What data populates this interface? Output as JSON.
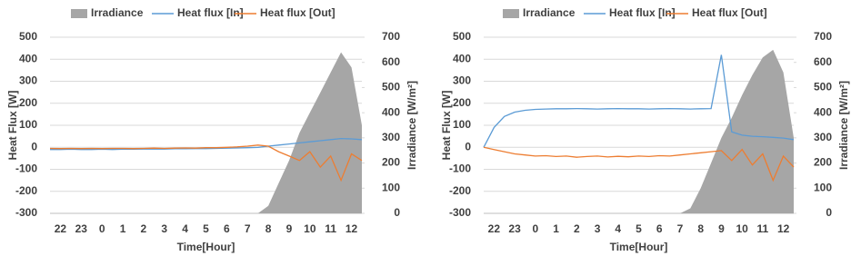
{
  "chart_data": [
    {
      "type": "line",
      "x_label": "Time[Hour]",
      "y_label": "Heat Flux [W]",
      "y2_label": "Irradiance [W/m²]",
      "categories": [
        null,
        "22",
        null,
        "23",
        null,
        "0",
        null,
        "1",
        null,
        "2",
        null,
        "3",
        null,
        "4",
        null,
        "5",
        null,
        "6",
        null,
        "7",
        null,
        "8",
        null,
        "9",
        null,
        "10",
        null,
        "11",
        null,
        "12",
        null
      ],
      "ylim": [
        -300,
        500
      ],
      "yticks": [
        -300,
        -200,
        -100,
        0,
        100,
        200,
        300,
        400,
        500
      ],
      "y2lim": [
        0,
        700
      ],
      "y2ticks": [
        0,
        100,
        200,
        300,
        400,
        500,
        600,
        700
      ],
      "grid": true,
      "series": [
        {
          "name": "Irradiance",
          "kind": "area",
          "axis": "y2",
          "color": "#a6a6a6",
          "values": [
            0,
            0,
            0,
            0,
            0,
            0,
            0,
            0,
            0,
            0,
            0,
            0,
            0,
            0,
            0,
            0,
            0,
            0,
            0,
            0,
            0,
            30,
            120,
            210,
            320,
            400,
            480,
            560,
            640,
            580,
            350
          ]
        },
        {
          "name": "Heat flux [In]",
          "color": "#5b9bd5",
          "values": [
            -10,
            -10,
            -9,
            -10,
            -10,
            -9,
            -10,
            -9,
            -9,
            -8,
            -8,
            -8,
            -7,
            -7,
            -6,
            -6,
            -5,
            -4,
            -3,
            -2,
            0,
            5,
            10,
            15,
            20,
            25,
            30,
            35,
            40,
            38,
            35
          ]
        },
        {
          "name": "Heat flux [Out]",
          "color": "#ed7d31",
          "values": [
            -5,
            -6,
            -5,
            -6,
            -5,
            -6,
            -5,
            -5,
            -6,
            -5,
            -4,
            -5,
            -4,
            -3,
            -4,
            -2,
            -2,
            0,
            2,
            5,
            10,
            5,
            -20,
            -40,
            -60,
            -20,
            -90,
            -40,
            -150,
            -30,
            -60
          ]
        }
      ]
    },
    {
      "type": "line",
      "x_label": "Time[Hour]",
      "y_label": "Heat Flux [W]",
      "y2_label": "Irradiance [W/m²]",
      "categories": [
        null,
        "22",
        null,
        "23",
        null,
        "0",
        null,
        "1",
        null,
        "2",
        null,
        "3",
        null,
        "4",
        null,
        "5",
        null,
        "6",
        null,
        "7",
        null,
        "8",
        null,
        "9",
        null,
        "10",
        null,
        "11",
        null,
        "12",
        null
      ],
      "ylim": [
        -300,
        500
      ],
      "yticks": [
        -300,
        -200,
        -100,
        0,
        100,
        200,
        300,
        400,
        500
      ],
      "y2lim": [
        0,
        700
      ],
      "y2ticks": [
        0,
        100,
        200,
        300,
        400,
        500,
        600,
        700
      ],
      "grid": true,
      "series": [
        {
          "name": "Irradiance",
          "kind": "area",
          "axis": "y2",
          "color": "#a6a6a6",
          "values": [
            0,
            0,
            0,
            0,
            0,
            0,
            0,
            0,
            0,
            0,
            0,
            0,
            0,
            0,
            0,
            0,
            0,
            0,
            0,
            0,
            20,
            100,
            200,
            300,
            380,
            470,
            550,
            620,
            650,
            560,
            300
          ]
        },
        {
          "name": "Heat flux [In]",
          "color": "#5b9bd5",
          "values": [
            0,
            90,
            140,
            160,
            168,
            172,
            174,
            175,
            175,
            176,
            175,
            174,
            175,
            176,
            175,
            175,
            174,
            175,
            176,
            175,
            174,
            175,
            176,
            420,
            70,
            55,
            50,
            48,
            45,
            42,
            35
          ]
        },
        {
          "name": "Heat flux [Out]",
          "color": "#ed7d31",
          "values": [
            0,
            -10,
            -20,
            -30,
            -35,
            -40,
            -38,
            -42,
            -40,
            -45,
            -42,
            -40,
            -44,
            -41,
            -43,
            -40,
            -42,
            -38,
            -40,
            -35,
            -30,
            -25,
            -20,
            -15,
            -60,
            -10,
            -80,
            -30,
            -150,
            -40,
            -90
          ]
        }
      ]
    }
  ]
}
